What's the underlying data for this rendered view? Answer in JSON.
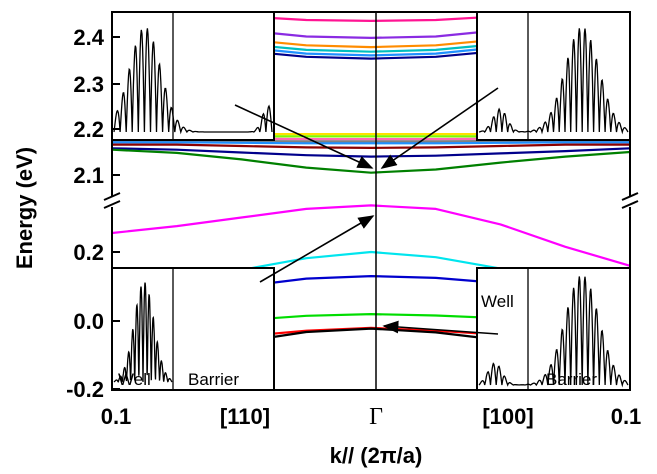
{
  "chart_data": {
    "type": "line",
    "xlabel": "k// (2π/a)",
    "ylabel": "Energy (eV)",
    "x_ticks": [
      "0.1",
      "[110]",
      "Γ",
      "[100]",
      "0.1"
    ],
    "x": [
      -0.1,
      -0.075,
      -0.05,
      -0.025,
      0,
      0.025,
      0.05,
      0.075,
      0.1
    ],
    "panels": [
      {
        "name": "upper",
        "ylim": [
          2.05,
          2.45
        ],
        "y_ticks": [
          "2.1",
          "2.2",
          "2.3",
          "2.4"
        ],
        "series": [
          {
            "color": "#FF1493",
            "values": [
              null,
              null,
              2.445,
              2.437,
              2.435,
              2.437,
              2.445,
              null,
              null
            ]
          },
          {
            "color": "#8A2BE2",
            "values": [
              null,
              null,
              2.415,
              2.401,
              2.398,
              2.401,
              2.415,
              null,
              null
            ]
          },
          {
            "color": "#FF8C00",
            "values": [
              null,
              null,
              2.395,
              2.382,
              2.378,
              2.382,
              2.395,
              null,
              null
            ]
          },
          {
            "color": "#00BFBF",
            "values": [
              null,
              null,
              2.385,
              2.372,
              2.368,
              2.372,
              2.385,
              null,
              null
            ]
          },
          {
            "color": "#1E90FF",
            "values": [
              null,
              null,
              2.378,
              2.364,
              2.36,
              2.364,
              2.378,
              null,
              null
            ]
          },
          {
            "color": "#00008B",
            "values": [
              null,
              null,
              2.37,
              2.357,
              2.353,
              2.357,
              2.37,
              null,
              null
            ]
          },
          {
            "color": "#FFE000",
            "values": [
              2.19,
              2.19,
              2.189,
              2.189,
              2.189,
              2.189,
              2.189,
              2.19,
              2.19
            ]
          },
          {
            "color": "#7CFC00",
            "values": [
              2.185,
              2.185,
              2.184,
              2.184,
              2.184,
              2.184,
              2.184,
              2.185,
              2.185
            ]
          },
          {
            "color": "#FF69B4",
            "values": [
              2.18,
              2.18,
              2.179,
              2.178,
              2.178,
              2.178,
              2.179,
              2.18,
              2.18
            ]
          },
          {
            "color": "#808080",
            "values": [
              2.175,
              2.175,
              2.174,
              2.173,
              2.173,
              2.173,
              2.174,
              2.175,
              2.175
            ]
          },
          {
            "color": "#1E90FF",
            "values": [
              2.171,
              2.171,
              2.17,
              2.169,
              2.169,
              2.169,
              2.17,
              2.171,
              2.171
            ]
          },
          {
            "color": "#8B0000",
            "values": [
              2.166,
              2.166,
              2.163,
              2.16,
              2.159,
              2.16,
              2.163,
              2.166,
              2.166
            ]
          },
          {
            "color": "#00008B",
            "values": [
              2.158,
              2.155,
              2.149,
              2.143,
              2.14,
              2.142,
              2.147,
              2.152,
              2.158
            ]
          },
          {
            "color": "#008000",
            "values": [
              2.155,
              2.148,
              2.134,
              2.116,
              2.105,
              2.112,
              2.127,
              2.14,
              2.15
            ]
          }
        ]
      },
      {
        "name": "lower",
        "ylim": [
          -0.2,
          0.36
        ],
        "y_ticks": [
          "-0.2",
          "0.0",
          "0.2"
        ],
        "series": [
          {
            "color": "#FF00FF",
            "values": [
              0.255,
              0.275,
              0.3,
              0.325,
              0.335,
              0.325,
              0.28,
              0.215,
              0.16
            ]
          },
          {
            "color": "#00E5EE",
            "values": [
              null,
              null,
              0.148,
              0.182,
              0.2,
              0.185,
              0.152,
              null,
              null
            ]
          },
          {
            "color": "#0000CD",
            "values": [
              null,
              null,
              0.1,
              0.123,
              0.13,
              0.125,
              0.11,
              null,
              null
            ]
          },
          {
            "color": "#00DD00",
            "values": [
              null,
              null,
              0.002,
              0.015,
              0.02,
              0.016,
              0.008,
              null,
              null
            ]
          },
          {
            "color": "#FF0000",
            "values": [
              null,
              null,
              -0.045,
              -0.028,
              -0.02,
              -0.028,
              -0.04,
              null,
              null
            ]
          },
          {
            "color": "#000000",
            "values": [
              null,
              null,
              -0.06,
              -0.032,
              -0.022,
              -0.033,
              -0.055,
              null,
              null
            ]
          }
        ]
      }
    ],
    "insets": [
      {
        "position": "upper-left",
        "labels": []
      },
      {
        "position": "upper-right",
        "labels": []
      },
      {
        "position": "lower-left",
        "labels": [
          "Well",
          "Barrier"
        ]
      },
      {
        "position": "lower-right",
        "labels": [
          "Well",
          "Barrier"
        ]
      }
    ],
    "grid": false,
    "legend": "none"
  }
}
